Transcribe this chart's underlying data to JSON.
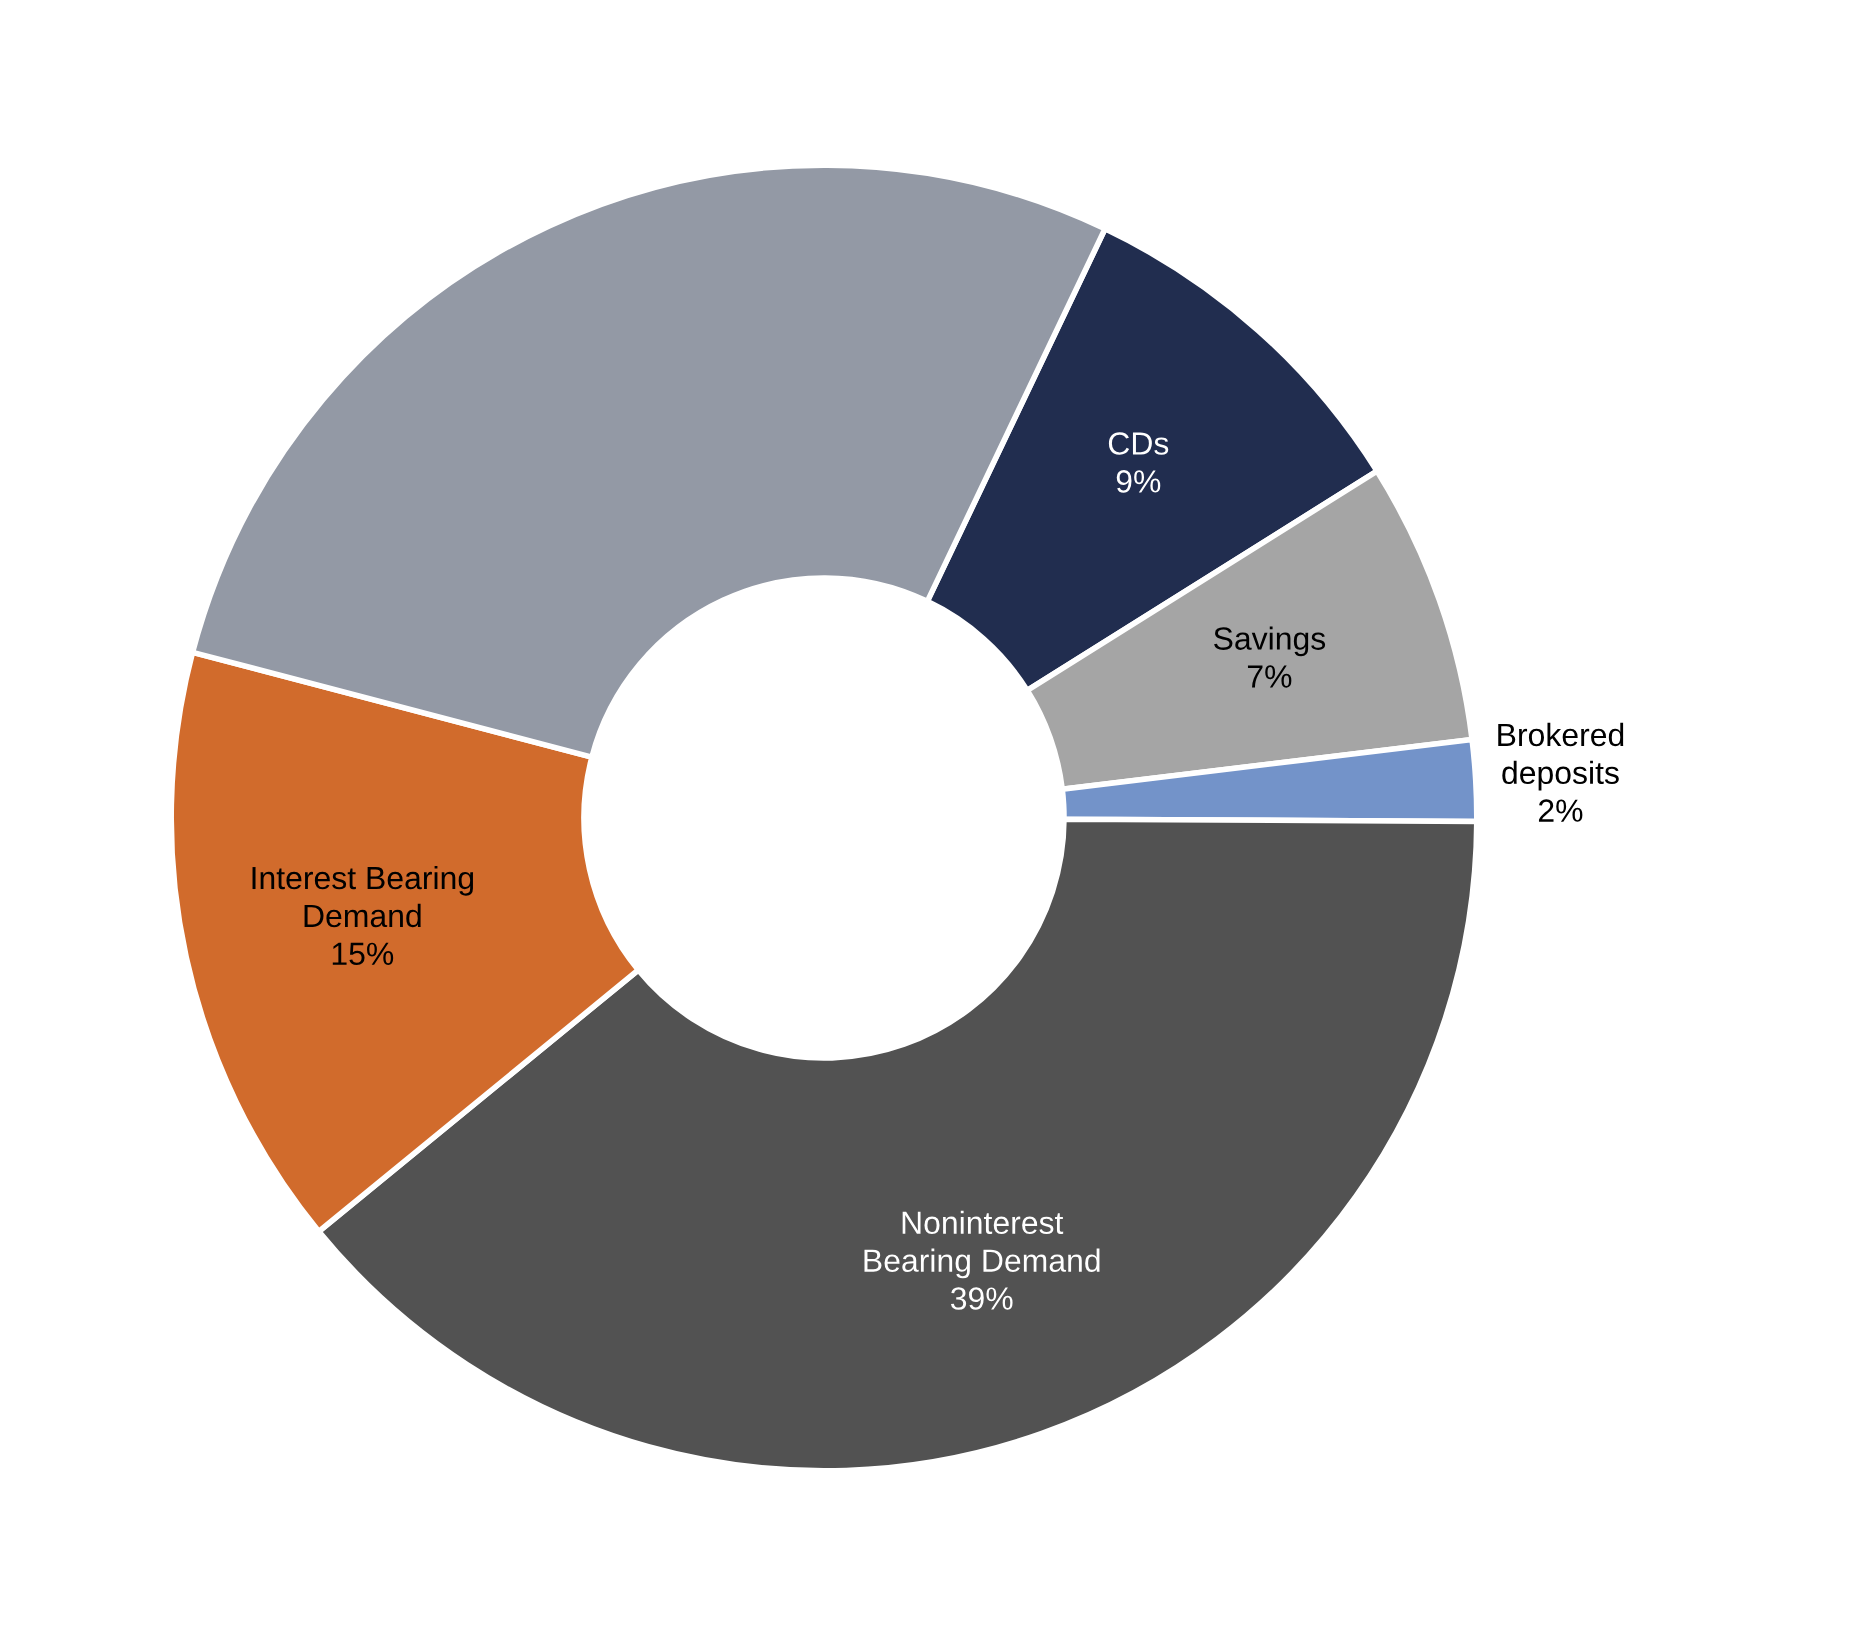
{
  "chart_data": {
    "type": "donut",
    "categories": [
      "CDs",
      "Savings",
      "Brokered\ndeposits",
      "Noninterest\nBearing Demand",
      "Interest Bearing\nDemand",
      null
    ],
    "values": [
      9,
      7,
      2,
      39,
      15,
      28
    ],
    "value_labels": [
      "9%",
      "7%",
      "2%",
      "39%",
      "15%",
      null
    ],
    "colors": [
      "#212d4f",
      "#a5a5a5",
      "#7393c9",
      "#525252",
      "#d16b2c",
      "#9399a5"
    ],
    "legend": false
  }
}
